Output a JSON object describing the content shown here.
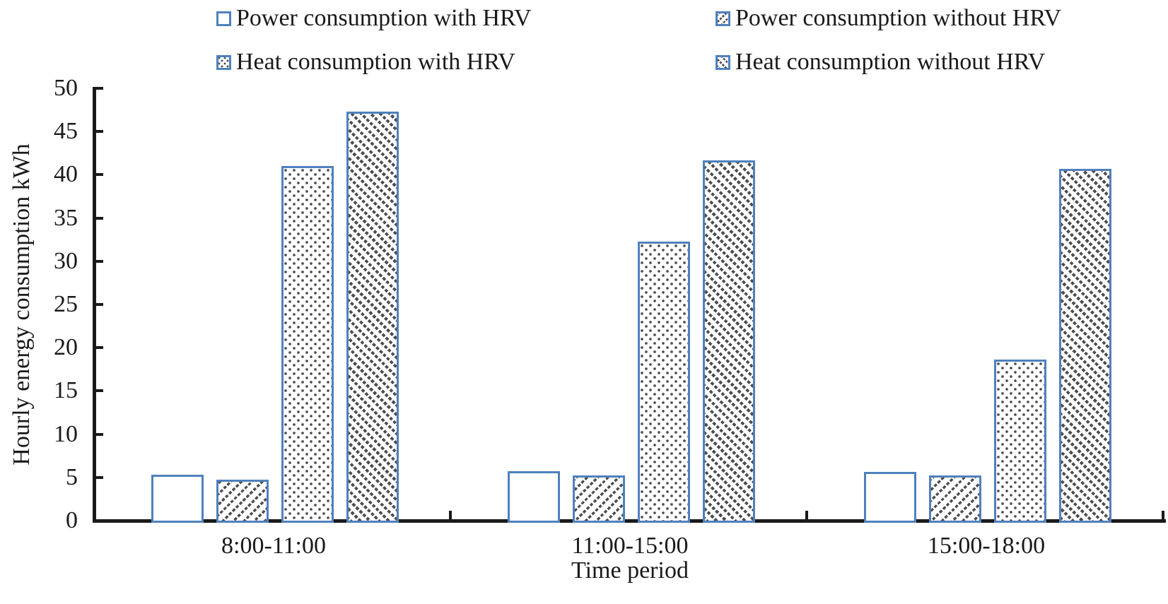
{
  "chart_data": {
    "type": "bar",
    "title": "",
    "categories": [
      "8:00-11:00",
      "11:00-15:00",
      "15:00-18:00"
    ],
    "series": [
      {
        "name": "Power consumption with HRV",
        "pattern": "none",
        "values": [
          5.3,
          5.7,
          5.6
        ]
      },
      {
        "name": "Power consumption without HRV",
        "pattern": "diagonal-up",
        "values": [
          4.7,
          5.2,
          5.2
        ]
      },
      {
        "name": "Heat consumption with HRV",
        "pattern": "dotted",
        "values": [
          41.0,
          32.3,
          18.6
        ]
      },
      {
        "name": "Heat consumption without HRV",
        "pattern": "diagonal-down",
        "values": [
          47.3,
          41.7,
          40.7
        ]
      }
    ],
    "xlabel": "Time period",
    "ylabel": "Hourly energy consumption kWh",
    "ylim": [
      0,
      50
    ],
    "ytick_step": 5,
    "yticks": [
      0,
      5,
      10,
      15,
      20,
      25,
      30,
      35,
      40,
      45,
      50
    ],
    "grid": false,
    "legend_position": "top",
    "legend_rows": 2,
    "legend_columns": 2,
    "colors": {
      "bar_border": "#4f81bd",
      "hatch": "#4d4d4d",
      "axis": "#1a1a1a",
      "text": "#1a1a1a",
      "background": "#ffffff"
    }
  }
}
